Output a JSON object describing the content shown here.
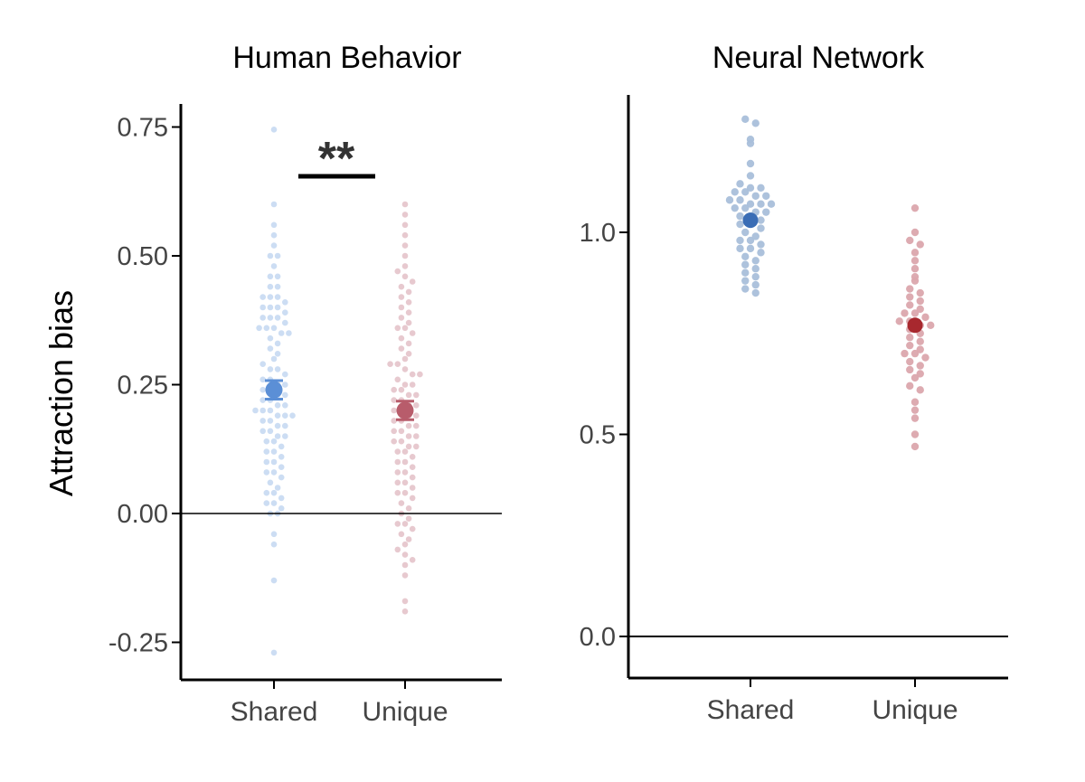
{
  "ylabel": "Attraction bias",
  "chart_data": [
    {
      "type": "scatter",
      "title": "Human Behavior",
      "categories": [
        "Shared",
        "Unique"
      ],
      "ylim": [
        -0.28,
        0.75
      ],
      "yticks": [
        "0.75",
        "0.50",
        "0.25",
        "0.00",
        "-0.25"
      ],
      "ytick_values": [
        0.75,
        0.5,
        0.25,
        0.0,
        -0.25
      ],
      "reference_line": 0.0,
      "grid": false,
      "significance": "**",
      "colors": {
        "Shared": "#5b8fd6",
        "Unique": "#b85c6b",
        "Shared_points": "#c9dbf2",
        "Unique_points": "#e6c6cc"
      },
      "series": [
        {
          "category": "Shared",
          "mean": 0.24,
          "error": 0.018,
          "values": [
            0.745,
            0.6,
            0.56,
            0.54,
            0.52,
            0.5,
            0.5,
            0.48,
            0.46,
            0.46,
            0.44,
            0.44,
            0.42,
            0.42,
            0.42,
            0.41,
            0.4,
            0.4,
            0.4,
            0.39,
            0.38,
            0.38,
            0.38,
            0.37,
            0.36,
            0.36,
            0.36,
            0.35,
            0.35,
            0.34,
            0.33,
            0.32,
            0.31,
            0.3,
            0.29,
            0.28,
            0.28,
            0.27,
            0.26,
            0.26,
            0.25,
            0.25,
            0.24,
            0.24,
            0.23,
            0.23,
            0.22,
            0.22,
            0.21,
            0.21,
            0.2,
            0.2,
            0.2,
            0.19,
            0.19,
            0.19,
            0.18,
            0.18,
            0.17,
            0.17,
            0.16,
            0.16,
            0.15,
            0.15,
            0.14,
            0.14,
            0.13,
            0.12,
            0.12,
            0.11,
            0.1,
            0.1,
            0.09,
            0.08,
            0.08,
            0.07,
            0.06,
            0.05,
            0.04,
            0.04,
            0.03,
            0.02,
            0.02,
            0.01,
            0.0,
            0.0,
            -0.04,
            -0.06,
            -0.13,
            -0.27
          ]
        },
        {
          "category": "Unique",
          "mean": 0.2,
          "error": 0.018,
          "values": [
            0.6,
            0.58,
            0.56,
            0.54,
            0.52,
            0.5,
            0.48,
            0.47,
            0.46,
            0.45,
            0.44,
            0.43,
            0.42,
            0.41,
            0.4,
            0.39,
            0.38,
            0.37,
            0.36,
            0.36,
            0.35,
            0.34,
            0.33,
            0.32,
            0.31,
            0.3,
            0.29,
            0.29,
            0.28,
            0.27,
            0.27,
            0.26,
            0.25,
            0.25,
            0.24,
            0.24,
            0.23,
            0.23,
            0.22,
            0.22,
            0.21,
            0.21,
            0.2,
            0.2,
            0.19,
            0.19,
            0.18,
            0.18,
            0.17,
            0.17,
            0.16,
            0.16,
            0.15,
            0.15,
            0.14,
            0.14,
            0.13,
            0.13,
            0.12,
            0.12,
            0.11,
            0.1,
            0.1,
            0.09,
            0.08,
            0.08,
            0.07,
            0.06,
            0.06,
            0.05,
            0.04,
            0.04,
            0.03,
            0.02,
            0.01,
            0.0,
            -0.01,
            -0.02,
            -0.02,
            -0.03,
            -0.04,
            -0.05,
            -0.06,
            -0.07,
            -0.08,
            -0.09,
            -0.1,
            -0.12,
            -0.17,
            -0.19
          ]
        }
      ]
    },
    {
      "type": "scatter",
      "title": "Neural Network",
      "categories": [
        "Shared",
        "Unique"
      ],
      "ylim": [
        -0.1,
        1.36
      ],
      "yticks": [
        "1.0",
        "0.5",
        "0.0"
      ],
      "ytick_values": [
        1.0,
        0.5,
        0.0
      ],
      "reference_line": 0.0,
      "grid": false,
      "colors": {
        "Shared": "#3a6db5",
        "Unique": "#a8282e",
        "Shared_points": "#a9bfda",
        "Unique_points": "#dba6ad"
      },
      "series": [
        {
          "category": "Shared",
          "mean": 1.03,
          "values": [
            1.28,
            1.27,
            1.23,
            1.22,
            1.17,
            1.14,
            1.12,
            1.11,
            1.11,
            1.1,
            1.1,
            1.09,
            1.09,
            1.08,
            1.08,
            1.07,
            1.07,
            1.07,
            1.06,
            1.06,
            1.05,
            1.05,
            1.04,
            1.04,
            1.03,
            1.02,
            1.02,
            1.01,
            1.0,
            0.99,
            0.98,
            0.98,
            0.97,
            0.96,
            0.96,
            0.95,
            0.94,
            0.93,
            0.92,
            0.91,
            0.9,
            0.89,
            0.88,
            0.87,
            0.86,
            0.85
          ]
        },
        {
          "category": "Unique",
          "mean": 0.77,
          "values": [
            1.06,
            1.0,
            0.98,
            0.97,
            0.95,
            0.93,
            0.91,
            0.89,
            0.88,
            0.86,
            0.85,
            0.84,
            0.83,
            0.82,
            0.81,
            0.8,
            0.8,
            0.79,
            0.78,
            0.78,
            0.77,
            0.77,
            0.76,
            0.75,
            0.74,
            0.73,
            0.72,
            0.71,
            0.7,
            0.7,
            0.69,
            0.68,
            0.67,
            0.66,
            0.65,
            0.64,
            0.62,
            0.61,
            0.58,
            0.56,
            0.54,
            0.5,
            0.47
          ]
        }
      ]
    }
  ]
}
